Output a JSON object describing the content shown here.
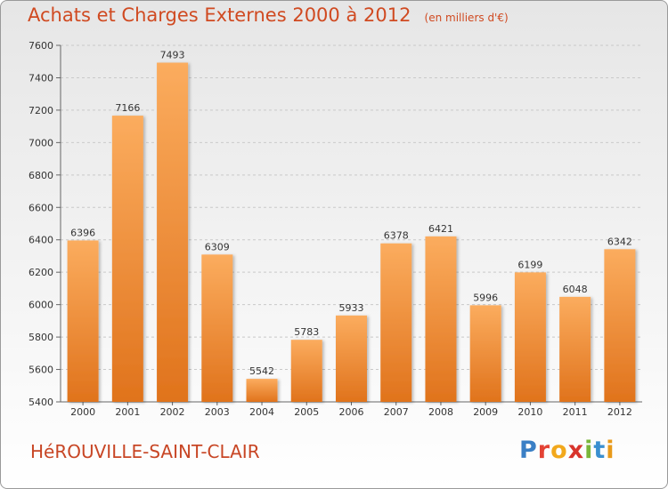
{
  "header": {
    "title": "Achats et Charges Externes 2000 à 2012",
    "unit": "(en milliers d'€)"
  },
  "footer": {
    "city": "HéROUVILLE-SAINT-CLAIR",
    "logo": [
      "P",
      "r",
      "o",
      "x",
      "i",
      "t",
      "i"
    ]
  },
  "colors": {
    "bar_top": "#fbac5e",
    "bar_bottom": "#e0731c",
    "title": "#d04a21",
    "logo": [
      "#3a7fc5",
      "#e34234",
      "#f2a81c",
      "#d8342c",
      "#7ab63a",
      "#3a8fd0",
      "#e89a1a"
    ]
  },
  "chart_data": {
    "type": "bar",
    "title": "Achats et Charges Externes 2000 à 2012",
    "subtitle": "(en milliers d'€)",
    "xlabel": "",
    "ylabel": "",
    "categories": [
      "2000",
      "2001",
      "2002",
      "2003",
      "2004",
      "2005",
      "2006",
      "2007",
      "2008",
      "2009",
      "2010",
      "2011",
      "2012"
    ],
    "values": [
      6396,
      7166,
      7493,
      6309,
      5542,
      5783,
      5933,
      6378,
      6421,
      5996,
      6199,
      6048,
      6342
    ],
    "ylim": [
      5400,
      7600
    ],
    "yticks": [
      5400,
      5600,
      5800,
      6000,
      6200,
      6400,
      6600,
      6800,
      7000,
      7200,
      7400,
      7600
    ],
    "grid": true,
    "legend": "none"
  }
}
